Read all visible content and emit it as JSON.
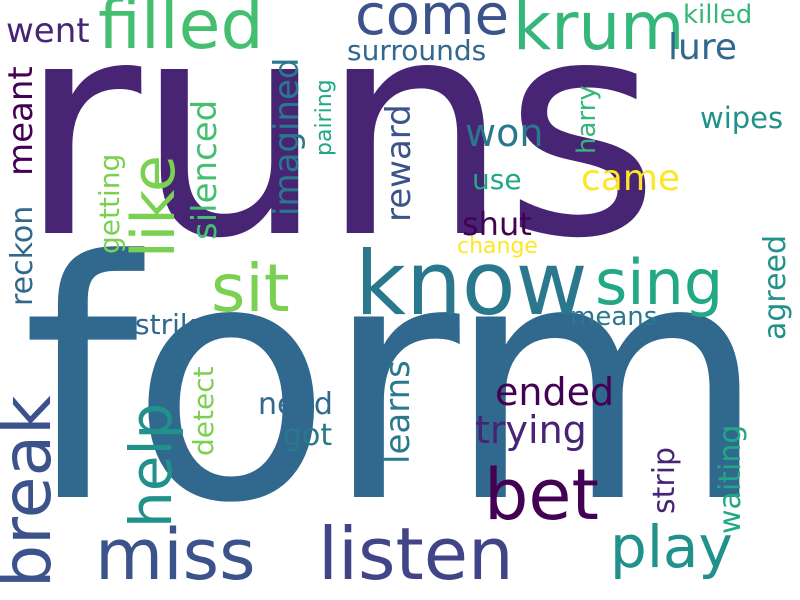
{
  "words": {
    "runs": "runs",
    "form": "form",
    "know": "know",
    "filled": "filled",
    "come": "come",
    "krum": "krum",
    "listen": "listen",
    "miss": "miss",
    "bet": "bet",
    "play": "play",
    "sing": "sing",
    "sit": "sit",
    "break": "break",
    "help": "help",
    "like": "like",
    "went": "went",
    "surrounds": "surrounds",
    "lure": "lure",
    "killed": "killed",
    "wipes": "wipes",
    "won": "won",
    "use": "use",
    "came": "came",
    "shut": "shut",
    "change": "change",
    "harry": "harry",
    "pairing": "pairing",
    "imagined": "imagined",
    "silenced": "silenced",
    "reward": "reward",
    "meant": "meant",
    "reckon": "reckon",
    "getting": "getting",
    "agreed": "agreed",
    "means": "means",
    "strike": "strike",
    "detect": "detect",
    "need": "need",
    "got": "got",
    "learns": "learns",
    "ended": "ended",
    "trying": "trying",
    "strip": "strip",
    "waiting": "waiting"
  },
  "palette": {
    "dark_purple": "#440154",
    "indigo": "#482475",
    "blue_purple": "#414487",
    "blue": "#355f8d",
    "teal_blue": "#2a788e",
    "teal": "#21918c",
    "green_teal": "#22a884",
    "green": "#44bf70",
    "light_green": "#7ad151",
    "lime": "#bddf26",
    "yellow": "#fde725"
  }
}
